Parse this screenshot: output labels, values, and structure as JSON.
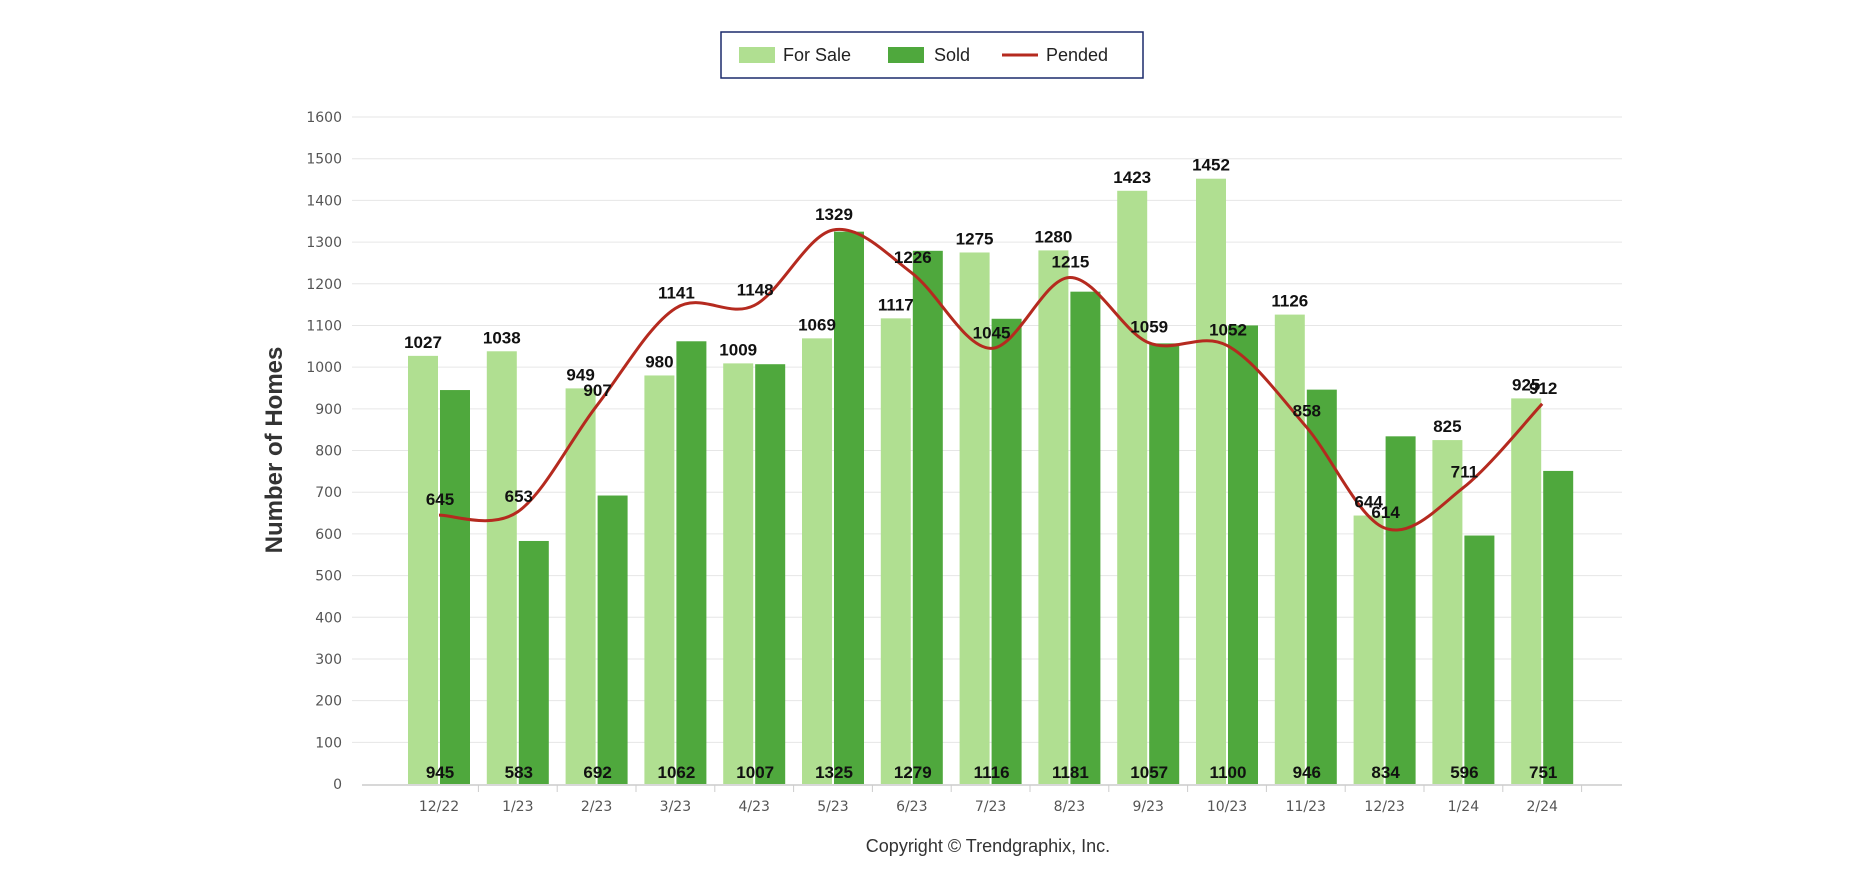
{
  "chart_data": {
    "type": "bar",
    "categories": [
      "12/22",
      "1/23",
      "2/23",
      "3/23",
      "4/23",
      "5/23",
      "6/23",
      "7/23",
      "8/23",
      "9/23",
      "10/23",
      "11/23",
      "12/23",
      "1/24",
      "2/24"
    ],
    "series": [
      {
        "name": "For Sale",
        "type": "bar",
        "color": "#b0df91",
        "values": [
          1027,
          1038,
          949,
          980,
          1009,
          1069,
          1117,
          1275,
          1280,
          1423,
          1452,
          1126,
          644,
          825,
          925
        ]
      },
      {
        "name": "Sold",
        "type": "bar",
        "color": "#4fa83d",
        "values": [
          945,
          583,
          692,
          1062,
          1007,
          1325,
          1279,
          1116,
          1181,
          1057,
          1100,
          946,
          834,
          596,
          751
        ]
      },
      {
        "name": "Pended",
        "type": "line",
        "color": "#b52a1f",
        "values": [
          645,
          653,
          907,
          1141,
          1148,
          1329,
          1226,
          1045,
          1215,
          1059,
          1052,
          858,
          614,
          711,
          912
        ]
      }
    ],
    "ylabel": "Number of Homes",
    "xlabel": "",
    "ylim": [
      0,
      1600
    ],
    "yticks": [
      0,
      100,
      200,
      300,
      400,
      500,
      600,
      700,
      800,
      900,
      1000,
      1100,
      1200,
      1300,
      1400,
      1500,
      1600
    ],
    "grid": true,
    "legend_position": "top-center",
    "copyright": "Copyright © Trendgraphix, Inc."
  }
}
